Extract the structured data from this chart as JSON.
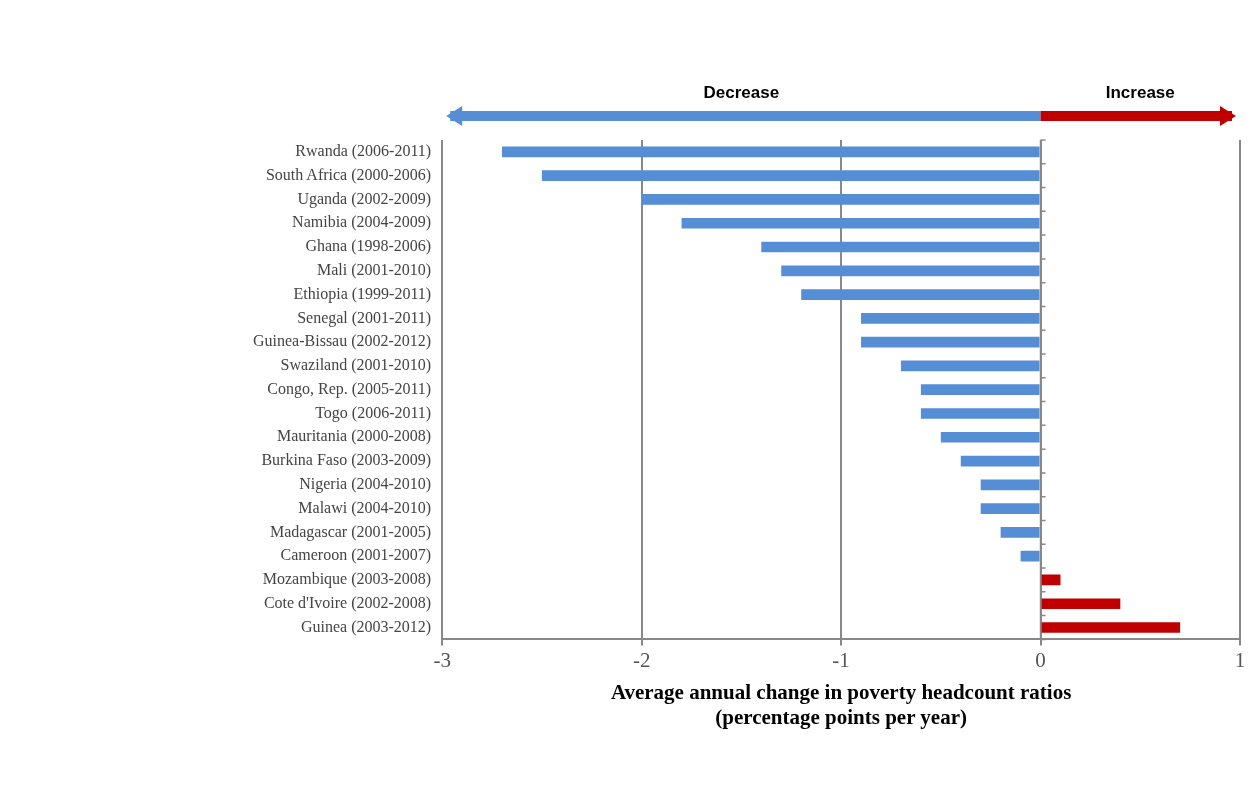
{
  "chart_data": {
    "type": "bar",
    "orientation": "horizontal",
    "categories": [
      "Rwanda (2006-2011)",
      "South Africa (2000-2006)",
      "Uganda (2002-2009)",
      "Namibia (2004-2009)",
      "Ghana (1998-2006)",
      "Mali (2001-2010)",
      "Ethiopia (1999-2011)",
      "Senegal (2001-2011)",
      "Guinea-Bissau (2002-2012)",
      "Swaziland (2001-2010)",
      "Congo, Rep. (2005-2011)",
      "Togo (2006-2011)",
      "Mauritania (2000-2008)",
      "Burkina Faso (2003-2009)",
      "Nigeria (2004-2010)",
      "Malawi (2004-2010)",
      "Madagascar (2001-2005)",
      "Cameroon (2001-2007)",
      "Mozambique (2003-2008)",
      "Cote d'Ivoire (2002-2008)",
      "Guinea (2003-2012)"
    ],
    "values": [
      -2.7,
      -2.5,
      -2.0,
      -1.8,
      -1.4,
      -1.3,
      -1.2,
      -0.9,
      -0.9,
      -0.7,
      -0.6,
      -0.6,
      -0.5,
      -0.4,
      -0.3,
      -0.3,
      -0.2,
      -0.1,
      0.1,
      0.4,
      0.7
    ],
    "colors": [
      "#558ed5",
      "#558ed5",
      "#558ed5",
      "#558ed5",
      "#558ed5",
      "#558ed5",
      "#558ed5",
      "#558ed5",
      "#558ed5",
      "#558ed5",
      "#558ed5",
      "#558ed5",
      "#558ed5",
      "#558ed5",
      "#558ed5",
      "#558ed5",
      "#558ed5",
      "#558ed5",
      "#c00000",
      "#c00000",
      "#c00000"
    ],
    "xlim": [
      -3,
      1
    ],
    "xticks": [
      -3,
      -2,
      -1,
      0,
      1
    ],
    "grid": "x",
    "legend": false,
    "xlabel": "Average annual change in poverty headcount ratios\n(percentage points per year)",
    "annotations": [
      "Decrease",
      "Increase"
    ]
  }
}
